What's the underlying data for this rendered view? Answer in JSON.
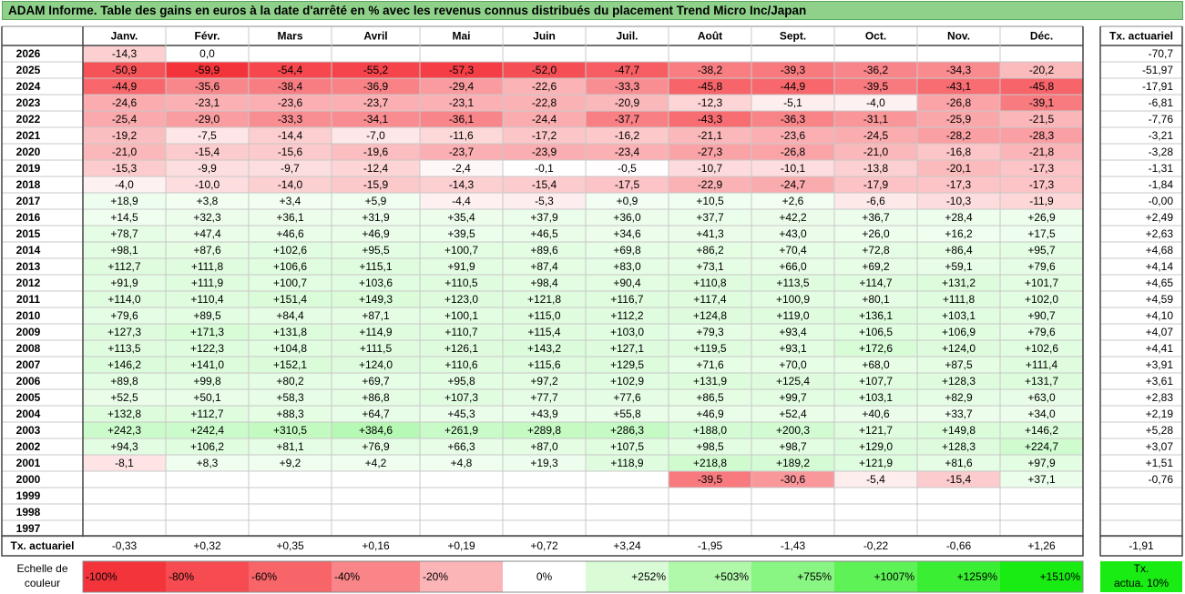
{
  "title": "ADAM Informe. Table des gains en euros à la date d'arrêté en % avec les revenus connus distribués du placement Trend Micro Inc/Japan",
  "chart_data": {
    "type": "table",
    "months": [
      "Janv.",
      "Févr.",
      "Mars",
      "Avril",
      "Mai",
      "Juin",
      "Juil.",
      "Août",
      "Sept.",
      "Oct.",
      "Nov.",
      "Déc."
    ],
    "rate_header": "Tx. actuariel",
    "rows": [
      {
        "year": "2026",
        "values": [
          "-14,3",
          "0,0",
          "",
          "",
          "",
          "",
          "",
          "",
          "",
          "",
          "",
          ""
        ],
        "rate": "-70,7"
      },
      {
        "year": "2025",
        "values": [
          "-50,9",
          "-59,9",
          "-54,4",
          "-55,2",
          "-57,3",
          "-52,0",
          "-47,7",
          "-38,2",
          "-39,3",
          "-36,2",
          "-34,3",
          "-20,2"
        ],
        "rate": "-51,97"
      },
      {
        "year": "2024",
        "values": [
          "-44,9",
          "-35,6",
          "-38,4",
          "-36,9",
          "-29,4",
          "-22,6",
          "-33,3",
          "-45,8",
          "-44,9",
          "-39,5",
          "-43,1",
          "-45,8"
        ],
        "rate": "-17,91"
      },
      {
        "year": "2023",
        "values": [
          "-24,6",
          "-23,1",
          "-23,6",
          "-23,7",
          "-23,1",
          "-22,8",
          "-20,9",
          "-12,3",
          "-5,1",
          "-4,0",
          "-26,8",
          "-39,1"
        ],
        "rate": "-6,81"
      },
      {
        "year": "2022",
        "values": [
          "-25,4",
          "-29,0",
          "-33,3",
          "-34,1",
          "-36,1",
          "-24,4",
          "-37,7",
          "-43,3",
          "-36,3",
          "-31,1",
          "-25,9",
          "-21,5"
        ],
        "rate": "-7,76"
      },
      {
        "year": "2021",
        "values": [
          "-19,2",
          "-7,5",
          "-14,4",
          "-7,0",
          "-11,6",
          "-17,2",
          "-16,2",
          "-21,1",
          "-23,6",
          "-24,5",
          "-28,2",
          "-28,3"
        ],
        "rate": "-3,21"
      },
      {
        "year": "2020",
        "values": [
          "-21,0",
          "-15,4",
          "-15,6",
          "-19,6",
          "-23,7",
          "-23,9",
          "-23,4",
          "-27,3",
          "-26,8",
          "-21,0",
          "-16,8",
          "-21,8"
        ],
        "rate": "-3,28"
      },
      {
        "year": "2019",
        "values": [
          "-15,3",
          "-9,9",
          "-9,7",
          "-12,4",
          "-2,4",
          "-0,1",
          "-0,5",
          "-10,7",
          "-10,1",
          "-13,8",
          "-20,1",
          "-17,3"
        ],
        "rate": "-1,31"
      },
      {
        "year": "2018",
        "values": [
          "-4,0",
          "-10,0",
          "-14,0",
          "-15,9",
          "-14,3",
          "-15,4",
          "-17,5",
          "-22,9",
          "-24,7",
          "-17,9",
          "-17,3",
          "-17,3"
        ],
        "rate": "-1,84"
      },
      {
        "year": "2017",
        "values": [
          "+18,9",
          "+3,8",
          "+3,4",
          "+5,9",
          "-4,4",
          "-5,3",
          "+0,9",
          "+10,5",
          "+2,6",
          "-6,6",
          "-10,3",
          "-11,9"
        ],
        "rate": "-0,00"
      },
      {
        "year": "2016",
        "values": [
          "+14,5",
          "+32,3",
          "+36,1",
          "+31,9",
          "+35,4",
          "+37,9",
          "+36,0",
          "+37,7",
          "+42,2",
          "+36,7",
          "+28,4",
          "+26,9"
        ],
        "rate": "+2,49"
      },
      {
        "year": "2015",
        "values": [
          "+78,7",
          "+47,4",
          "+46,6",
          "+46,9",
          "+39,5",
          "+46,5",
          "+34,6",
          "+41,3",
          "+43,0",
          "+26,0",
          "+16,2",
          "+17,5"
        ],
        "rate": "+2,63"
      },
      {
        "year": "2014",
        "values": [
          "+98,1",
          "+87,6",
          "+102,6",
          "+95,5",
          "+100,7",
          "+89,6",
          "+69,8",
          "+86,2",
          "+70,4",
          "+72,8",
          "+86,4",
          "+95,7"
        ],
        "rate": "+4,68"
      },
      {
        "year": "2013",
        "values": [
          "+112,7",
          "+111,8",
          "+106,6",
          "+115,1",
          "+91,9",
          "+87,4",
          "+83,0",
          "+73,1",
          "+66,0",
          "+69,2",
          "+59,1",
          "+79,6"
        ],
        "rate": "+4,14"
      },
      {
        "year": "2012",
        "values": [
          "+91,9",
          "+111,9",
          "+100,7",
          "+103,6",
          "+110,5",
          "+98,4",
          "+90,4",
          "+110,8",
          "+113,5",
          "+114,7",
          "+131,2",
          "+101,7"
        ],
        "rate": "+4,65"
      },
      {
        "year": "2011",
        "values": [
          "+114,0",
          "+110,4",
          "+151,4",
          "+149,3",
          "+123,0",
          "+121,8",
          "+116,7",
          "+117,4",
          "+100,9",
          "+80,1",
          "+111,8",
          "+102,0"
        ],
        "rate": "+4,59"
      },
      {
        "year": "2010",
        "values": [
          "+79,6",
          "+89,5",
          "+84,4",
          "+87,1",
          "+100,1",
          "+115,0",
          "+112,2",
          "+124,8",
          "+119,0",
          "+136,1",
          "+103,1",
          "+90,7"
        ],
        "rate": "+4,10"
      },
      {
        "year": "2009",
        "values": [
          "+127,3",
          "+171,3",
          "+131,8",
          "+114,9",
          "+110,7",
          "+115,4",
          "+103,0",
          "+79,3",
          "+93,4",
          "+106,5",
          "+106,9",
          "+79,6"
        ],
        "rate": "+4,07"
      },
      {
        "year": "2008",
        "values": [
          "+113,5",
          "+122,3",
          "+104,8",
          "+111,5",
          "+126,1",
          "+143,2",
          "+127,1",
          "+119,5",
          "+93,1",
          "+172,6",
          "+124,0",
          "+102,6"
        ],
        "rate": "+4,41"
      },
      {
        "year": "2007",
        "values": [
          "+146,2",
          "+141,0",
          "+152,1",
          "+124,0",
          "+110,6",
          "+115,6",
          "+129,5",
          "+71,6",
          "+70,0",
          "+68,0",
          "+87,5",
          "+111,4"
        ],
        "rate": "+3,91"
      },
      {
        "year": "2006",
        "values": [
          "+89,8",
          "+99,8",
          "+80,2",
          "+69,7",
          "+95,8",
          "+97,2",
          "+102,9",
          "+131,9",
          "+125,4",
          "+107,7",
          "+128,3",
          "+131,7"
        ],
        "rate": "+3,61"
      },
      {
        "year": "2005",
        "values": [
          "+52,5",
          "+50,1",
          "+58,3",
          "+86,8",
          "+107,3",
          "+77,7",
          "+77,6",
          "+86,5",
          "+99,7",
          "+103,1",
          "+82,9",
          "+63,0"
        ],
        "rate": "+2,83"
      },
      {
        "year": "2004",
        "values": [
          "+132,8",
          "+112,7",
          "+88,3",
          "+64,7",
          "+45,3",
          "+43,9",
          "+55,8",
          "+46,9",
          "+52,4",
          "+40,6",
          "+33,7",
          "+34,0"
        ],
        "rate": "+2,19"
      },
      {
        "year": "2003",
        "values": [
          "+242,3",
          "+242,4",
          "+310,5",
          "+384,6",
          "+261,9",
          "+289,8",
          "+286,3",
          "+188,0",
          "+200,3",
          "+121,7",
          "+149,8",
          "+146,2"
        ],
        "rate": "+5,28"
      },
      {
        "year": "2002",
        "values": [
          "+94,3",
          "+106,2",
          "+81,1",
          "+76,9",
          "+66,3",
          "+87,0",
          "+107,5",
          "+98,5",
          "+98,7",
          "+129,0",
          "+128,3",
          "+224,7"
        ],
        "rate": "+3,07"
      },
      {
        "year": "2001",
        "values": [
          "-8,1",
          "+8,3",
          "+9,2",
          "+4,2",
          "+4,8",
          "+19,3",
          "+118,9",
          "+218,8",
          "+189,2",
          "+121,9",
          "+81,6",
          "+97,9"
        ],
        "rate": "+1,51"
      },
      {
        "year": "2000",
        "values": [
          "",
          "",
          "",
          "",
          "",
          "",
          "",
          "-39,5",
          "-30,6",
          "-5,4",
          "-15,4",
          "+37,1"
        ],
        "rate": "-0,76"
      },
      {
        "year": "1999",
        "values": [
          "",
          "",
          "",
          "",
          "",
          "",
          "",
          "",
          "",
          "",
          "",
          ""
        ],
        "rate": ""
      },
      {
        "year": "1998",
        "values": [
          "",
          "",
          "",
          "",
          "",
          "",
          "",
          "",
          "",
          "",
          "",
          ""
        ],
        "rate": ""
      },
      {
        "year": "1997",
        "values": [
          "",
          "",
          "",
          "",
          "",
          "",
          "",
          "",
          "",
          "",
          "",
          ""
        ],
        "rate": ""
      }
    ],
    "footer": {
      "label": "Tx. actuariel",
      "values": [
        "-0,33",
        "+0,32",
        "+0,35",
        "+0,16",
        "+0,19",
        "+0,72",
        "+3,24",
        "-1,95",
        "-1,43",
        "-0,22",
        "-0,66",
        "+1,26"
      ],
      "total": "-1,91"
    },
    "scale": {
      "label_line1": "Echelle de",
      "label_line2": "couleur",
      "cells": [
        {
          "text": "-100%",
          "color": "#f4343b"
        },
        {
          "text": "-80%",
          "color": "#f64c51"
        },
        {
          "text": "-60%",
          "color": "#f76569"
        },
        {
          "text": "-40%",
          "color": "#f98588"
        },
        {
          "text": "-20%",
          "color": "#fbb5b7"
        },
        {
          "text": "0%",
          "color": "#ffffff"
        },
        {
          "text": "+252%",
          "color": "#d9fbd6"
        },
        {
          "text": "+503%",
          "color": "#b0f8aa"
        },
        {
          "text": "+755%",
          "color": "#89f582"
        },
        {
          "text": "+1007%",
          "color": "#5ef257"
        },
        {
          "text": "+1259%",
          "color": "#3aef33"
        },
        {
          "text": "+1510%",
          "color": "#18ec12"
        }
      ],
      "rate_line1": "Tx.",
      "rate_line2": "actua. 10%",
      "rate_color": "#18ec12"
    },
    "colors": {
      "negative_max": "#f4343b",
      "positive_max": "#18ec12",
      "neutral": "#ffffff",
      "title_bar": "#8fd18a"
    }
  }
}
